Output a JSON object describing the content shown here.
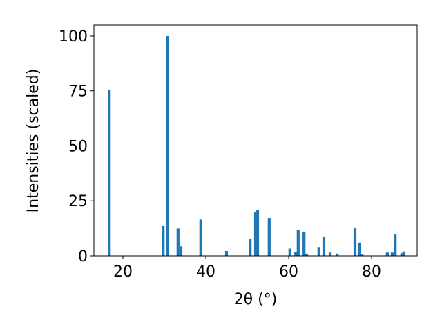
{
  "chart_data": {
    "type": "bar",
    "xlabel": "2θ (°)",
    "ylabel": "Intensities (scaled)",
    "x": [
      16.7,
      29.7,
      30.7,
      33.3,
      34.0,
      38.8,
      45.0,
      50.7,
      52.0,
      52.5,
      55.3,
      60.3,
      61.7,
      62.3,
      63.7,
      64.3,
      67.3,
      68.5,
      70.0,
      71.7,
      76.0,
      77.0,
      77.7,
      83.8,
      85.0,
      85.7,
      87.3,
      87.8
    ],
    "values": [
      75.3,
      13.5,
      100,
      12.4,
      4.3,
      16.5,
      2.2,
      7.8,
      20.0,
      21.0,
      17.2,
      3.3,
      1.7,
      11.8,
      11.0,
      1.0,
      4.0,
      8.8,
      1.5,
      1.0,
      12.5,
      6.0,
      0.6,
      1.5,
      1.5,
      9.7,
      1.2,
      2.0
    ],
    "color": "#1f77b4",
    "xlim": [
      13,
      91
    ],
    "ylim": [
      0,
      105
    ],
    "xticks": [
      20,
      40,
      60,
      80
    ],
    "yticks": [
      0,
      25,
      50,
      75,
      100
    ]
  }
}
